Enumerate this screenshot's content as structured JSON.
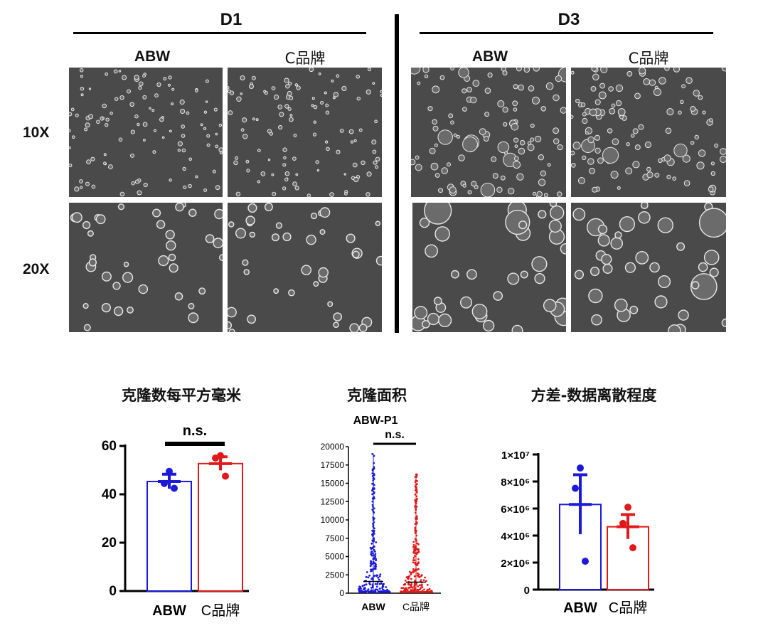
{
  "figure": {
    "groups": [
      {
        "label": "D1",
        "columns": [
          "ABW",
          "C品牌"
        ]
      },
      {
        "label": "D3",
        "columns": [
          "ABW",
          "C品牌"
        ]
      }
    ],
    "rows": [
      "10X",
      "20X"
    ]
  },
  "chart_data": [
    {
      "type": "bar",
      "title": "克隆数每平方毫米",
      "categories": [
        "ABW",
        "C品牌"
      ],
      "values": [
        45.3,
        52.7
      ],
      "errors": [
        3.0,
        2.8
      ],
      "points": [
        [
          49.5,
          44.5,
          42.5
        ],
        [
          56.0,
          55.0,
          47.5
        ]
      ],
      "colors": [
        "#1a1ad8",
        "#e01a1a"
      ],
      "ylim": [
        0,
        60
      ],
      "yticks": [
        0,
        20,
        40,
        60
      ],
      "annotation": "n.s."
    },
    {
      "type": "scatter",
      "title": "克隆面积",
      "subtitle": "ABW-P1",
      "categories": [
        "ABW",
        "C品牌"
      ],
      "max": [
        19000,
        16200
      ],
      "median": [
        1600,
        1500
      ],
      "colors": [
        "#1a1ad8",
        "#e01a1a"
      ],
      "ylim": [
        0,
        20000
      ],
      "yticks": [
        0,
        2500,
        5000,
        7500,
        10000,
        12500,
        15000,
        17500,
        20000
      ],
      "annotation": "n.s."
    },
    {
      "type": "bar",
      "title": "方差-数据离散程度",
      "categories": [
        "ABW",
        "C品牌"
      ],
      "values": [
        6300000,
        4650000
      ],
      "errors": [
        2200000,
        900000
      ],
      "points": [
        [
          9000000,
          7500000,
          2100000
        ],
        [
          6100000,
          4900000,
          3100000
        ]
      ],
      "colors": [
        "#1a1ad8",
        "#e01a1a"
      ],
      "ylim": [
        0,
        10000000
      ],
      "yticks": [
        0,
        2000000,
        4000000,
        6000000,
        8000000,
        10000000
      ],
      "ytick_labels": [
        "0",
        "2×10⁶",
        "4×10⁶",
        "6×10⁶",
        "8×10⁶",
        "1×10⁷"
      ]
    }
  ]
}
